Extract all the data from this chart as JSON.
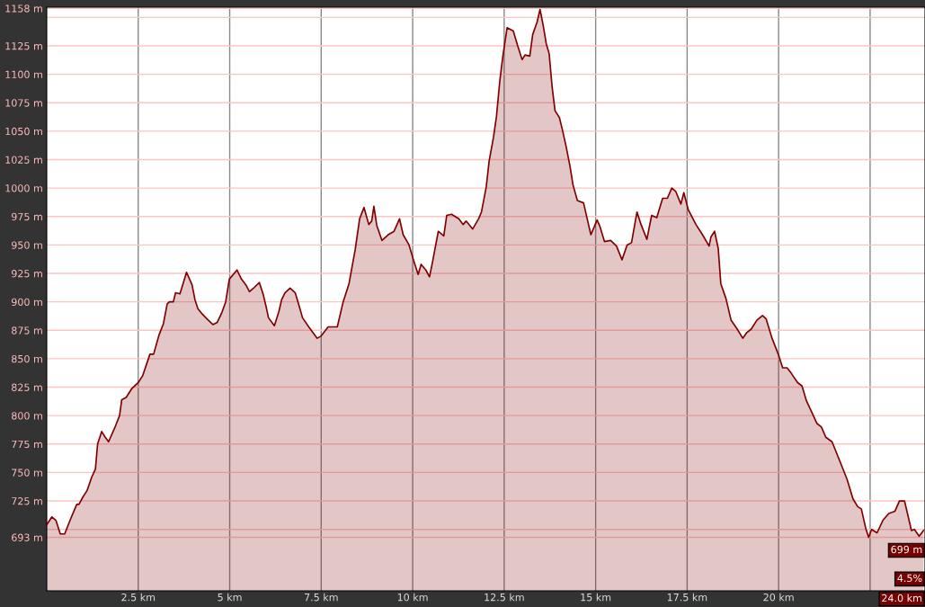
{
  "chart_data": {
    "type": "area",
    "xlim": [
      0,
      24
    ],
    "ylim": [
      646,
      1159
    ],
    "xticks": [
      {
        "value": 2.5,
        "label": "2.5 km"
      },
      {
        "value": 5,
        "label": "5 km"
      },
      {
        "value": 7.5,
        "label": "7.5 km"
      },
      {
        "value": 10,
        "label": "10 km"
      },
      {
        "value": 12.5,
        "label": "12.5 km"
      },
      {
        "value": 15,
        "label": "15 km"
      },
      {
        "value": 17.5,
        "label": "17.5 km"
      },
      {
        "value": 20,
        "label": "20 km"
      },
      {
        "value": 22.5,
        "label": null
      }
    ],
    "yticks": [
      {
        "value": 693,
        "label": "693 m"
      },
      {
        "value": 700,
        "label": null
      },
      {
        "value": 725,
        "label": "725 m"
      },
      {
        "value": 750,
        "label": "750 m"
      },
      {
        "value": 775,
        "label": "775 m"
      },
      {
        "value": 800,
        "label": "800 m"
      },
      {
        "value": 825,
        "label": "825 m"
      },
      {
        "value": 850,
        "label": "850 m"
      },
      {
        "value": 875,
        "label": "875 m"
      },
      {
        "value": 900,
        "label": "900 m"
      },
      {
        "value": 925,
        "label": "925 m"
      },
      {
        "value": 950,
        "label": "950 m"
      },
      {
        "value": 975,
        "label": "975 m"
      },
      {
        "value": 1000,
        "label": "1000 m"
      },
      {
        "value": 1025,
        "label": "1025 m"
      },
      {
        "value": 1050,
        "label": "1050 m"
      },
      {
        "value": 1075,
        "label": "1075 m"
      },
      {
        "value": 1100,
        "label": "1100 m"
      },
      {
        "value": 1125,
        "label": "1125 m"
      },
      {
        "value": 1150,
        "label": null
      },
      {
        "value": 1158,
        "label": "1158 m"
      }
    ],
    "grid": true,
    "legend": false,
    "marker": "none",
    "line_style": "solid",
    "annotations": [
      {
        "text": "699 m",
        "x": 24,
        "y": 699
      },
      "4.5%",
      "24.0 km"
    ],
    "series": [
      {
        "color": "#800000",
        "x": [
          0,
          0.14,
          0.25,
          0.37,
          0.49,
          0.65,
          0.82,
          0.88,
          0.98,
          1.1,
          1.23,
          1.33,
          1.39,
          1.5,
          1.6,
          1.69,
          1.88,
          1.99,
          2.05,
          2.17,
          2.33,
          2.5,
          2.62,
          2.82,
          2.92,
          3.07,
          3.19,
          3.29,
          3.35,
          3.46,
          3.52,
          3.64,
          3.82,
          3.97,
          4.05,
          4.13,
          4.23,
          4.38,
          4.54,
          4.66,
          4.79,
          4.89,
          4.99,
          5.2,
          5.32,
          5.44,
          5.54,
          5.65,
          5.81,
          5.92,
          6.0,
          6.06,
          6.22,
          6.34,
          6.42,
          6.51,
          6.65,
          6.79,
          6.91,
          6.99,
          7.16,
          7.39,
          7.5,
          7.69,
          7.94,
          8.1,
          8.26,
          8.43,
          8.55,
          8.67,
          8.8,
          8.88,
          8.94,
          9.02,
          9.16,
          9.33,
          9.49,
          9.64,
          9.74,
          9.9,
          10.03,
          10.15,
          10.23,
          10.36,
          10.46,
          10.56,
          10.7,
          10.85,
          10.93,
          11.06,
          11.26,
          11.38,
          11.46,
          11.64,
          11.8,
          11.88,
          12.01,
          12.09,
          12.21,
          12.29,
          12.38,
          12.46,
          12.58,
          12.75,
          12.87,
          12.99,
          13.07,
          13.2,
          13.28,
          13.4,
          13.48,
          13.56,
          13.65,
          13.73,
          13.81,
          13.89,
          14.01,
          14.1,
          14.19,
          14.3,
          14.38,
          14.5,
          14.67,
          14.79,
          14.87,
          15.04,
          15.12,
          15.24,
          15.41,
          15.57,
          15.72,
          15.86,
          15.98,
          16.13,
          16.24,
          16.4,
          16.53,
          16.67,
          16.83,
          16.96,
          17.08,
          17.19,
          17.33,
          17.41,
          17.53,
          17.74,
          17.92,
          18.1,
          18.15,
          18.25,
          18.35,
          18.42,
          18.56,
          18.7,
          18.85,
          19.02,
          19.13,
          19.25,
          19.41,
          19.56,
          19.66,
          19.82,
          19.99,
          20.11,
          20.23,
          20.35,
          20.52,
          20.64,
          20.76,
          20.92,
          21.05,
          21.17,
          21.29,
          21.46,
          21.66,
          21.87,
          22.03,
          22.16,
          22.26,
          22.38,
          22.46,
          22.54,
          22.69,
          22.85,
          23.01,
          23.18,
          23.3,
          23.44,
          23.55,
          23.63,
          23.71,
          23.84,
          23.96
        ],
        "values": [
          704,
          711,
          708,
          696,
          696,
          709,
          722,
          722,
          728,
          734,
          746,
          753,
          775,
          786,
          781,
          777,
          791,
          800,
          814,
          816,
          824,
          829,
          835,
          854,
          854,
          871,
          881,
          898,
          900,
          900,
          908,
          907,
          926,
          915,
          902,
          894,
          890,
          885,
          880,
          882,
          891,
          900,
          920,
          928,
          920,
          915,
          909,
          912,
          917,
          906,
          895,
          886,
          879,
          891,
          902,
          908,
          912,
          908,
          895,
          886,
          878,
          868,
          870,
          878,
          878,
          900,
          916,
          946,
          973,
          983,
          968,
          971,
          984,
          967,
          954,
          959,
          962,
          973,
          959,
          950,
          936,
          924,
          933,
          928,
          922,
          938,
          962,
          958,
          976,
          977,
          973,
          968,
          971,
          964,
          973,
          979,
          1001,
          1024,
          1045,
          1063,
          1094,
          1115,
          1141,
          1138,
          1125,
          1113,
          1117,
          1116,
          1135,
          1146,
          1157,
          1144,
          1127,
          1118,
          1089,
          1068,
          1062,
          1050,
          1037,
          1019,
          1003,
          989,
          987,
          970,
          959,
          972,
          966,
          953,
          954,
          949,
          937,
          950,
          952,
          979,
          968,
          955,
          976,
          974,
          991,
          991,
          1000,
          997,
          986,
          996,
          981,
          968,
          959,
          949,
          957,
          962,
          947,
          916,
          903,
          884,
          877,
          868,
          873,
          876,
          884,
          888,
          885,
          868,
          854,
          842,
          842,
          837,
          829,
          826,
          813,
          802,
          793,
          790,
          781,
          777,
          761,
          744,
          727,
          720,
          718,
          701,
          693,
          700,
          697,
          708,
          714,
          716,
          725,
          725,
          710,
          699,
          700,
          694,
          699
        ]
      }
    ]
  }
}
